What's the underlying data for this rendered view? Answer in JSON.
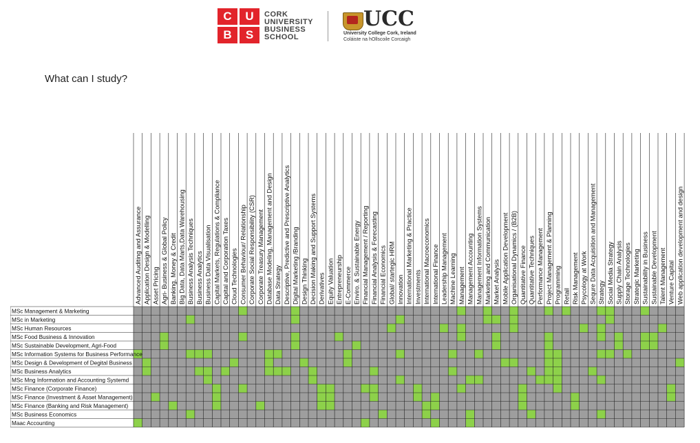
{
  "logos": {
    "cubs_letters": [
      "C",
      "U",
      "B",
      "S"
    ],
    "cubs_name_lines": [
      "CORK",
      "UNIVERSITY",
      "BUSINESS",
      "SCHOOL"
    ],
    "ucc_wordmark": "UCC",
    "ucc_subtitle_1": "University College Cork, Ireland",
    "ucc_subtitle_2": "Coláiste na hOllscoile Corcaigh",
    "cubs_red": "#e2242b"
  },
  "question": "What can I study?",
  "matrix": {
    "cell_color": "#9e9e9e",
    "highlight_color": "#8dd14a",
    "grid_color": "#222222",
    "columns": [
      "Advanced Auditing and Assurance",
      "Application Design & Modelling",
      "Asset Pricing",
      "Agri- Business & Global Policy",
      "Banking, Money & Credit",
      "Big Data, Data Marts,Data Warehousing",
      "Business  Analysis Techniques",
      "Business Analytics",
      "Business Data Visualisation",
      "Capital Markets, Regulations & Compliance",
      "Capital and Corporation Taxes",
      "Cloud Technologies",
      "Consumer Behaviour/ Relationship",
      "Corporate Social Responsibility (CSR)",
      "Corporate Treasury Management",
      "Database Modeling, Management and Design",
      "Data Strategy",
      "Descriptive, Predictive and Prescriptive Analytics",
      "Digital Marketing /Branding",
      "Design Thinking",
      "Decision Making and  Support Systems",
      "Derivatives",
      "Equity Valuation",
      "Entrepreneurship",
      "E-Commerce",
      "Enviro. & Sustainable Energy",
      "Financial Management / Reporting",
      "Financial Analysis & Forecasting",
      "Financial Economics",
      "Global/ startegic  HRM",
      "Innovation",
      "International Marketing & Practice",
      "Investments",
      "International Macroeconomics",
      "International Finance",
      "Leadership Management",
      "Machine Learning",
      "Management",
      "Management Accounting",
      "Management Information Systems",
      "Marketing and Communication",
      "Market Analysis",
      "Mobile Application Development",
      "Organisational Dynamics / (B2B)",
      "Quantitative Finance",
      "Quantitative Techniques",
      "Performance Management",
      "Project Management & Planning",
      "Programming",
      "Retail",
      "Risk Management",
      "Psycology at Work",
      "Sequre Data Acquisition and Management",
      "Strategy",
      "Social Media Strategy",
      "Supply Chain Analysis",
      "Storage Technologies",
      "Strategic Marketing",
      "Sustainability in Business",
      "Sustainable Development",
      "Talent Management",
      "Venture Capital",
      "Web application development and design"
    ],
    "rows": [
      {
        "label": "MSc Management & Marketing",
        "marked": [
          12,
          18,
          37,
          40,
          43,
          47,
          49,
          53,
          54,
          58
        ]
      },
      {
        "label": "MSc in Marketing",
        "marked": [
          6,
          18,
          30,
          40,
          41,
          43,
          54
        ]
      },
      {
        "label": "MSc Human Resources",
        "marked": [
          29,
          35,
          37,
          43,
          51,
          53,
          60
        ]
      },
      {
        "label": "MSc Food Business & Innovation",
        "marked": [
          3,
          12,
          18,
          23,
          37,
          41,
          47,
          53,
          55,
          58,
          59
        ]
      },
      {
        "label": "MSc Sustainable Development, Agri-Food",
        "marked": [
          3,
          18,
          25,
          41,
          47,
          55,
          58,
          59
        ]
      },
      {
        "label": "MSc Information Systems for Business Performance",
        "marked": [
          0,
          6,
          7,
          8,
          15,
          16,
          24,
          30,
          36,
          39,
          47,
          48,
          53,
          54,
          56
        ]
      },
      {
        "label": "MSc Design & Development of Degital Business",
        "marked": [
          1,
          11,
          15,
          19,
          24,
          42,
          43,
          47,
          48,
          62
        ]
      },
      {
        "label": "MSc Business Analytics",
        "marked": [
          1,
          7,
          8,
          10,
          15,
          16,
          17,
          20,
          27,
          36,
          45,
          47,
          48,
          52
        ]
      },
      {
        "label": "MSc Mng Information and Accounting Systemd",
        "marked": [
          8,
          20,
          30,
          38,
          39,
          46,
          47,
          48,
          53
        ]
      },
      {
        "label": "MSc Finance (Corporate Finance)",
        "marked": [
          9,
          12,
          21,
          22,
          26,
          27,
          32,
          37,
          44,
          48,
          61
        ]
      },
      {
        "label": "MSc Finance (Investment & Asset Management)",
        "marked": [
          2,
          9,
          21,
          22,
          27,
          32,
          34,
          44,
          50,
          61
        ]
      },
      {
        "label": "MSc Finance (Banking and Risk Management)",
        "marked": [
          4,
          9,
          14,
          21,
          22,
          33,
          34,
          44,
          50
        ]
      },
      {
        "label": "MSc Business Economics",
        "marked": [
          6,
          28,
          33,
          38,
          45,
          53
        ]
      },
      {
        "label": "Maac Accounting",
        "marked": [
          0,
          26,
          34,
          38
        ]
      }
    ]
  }
}
